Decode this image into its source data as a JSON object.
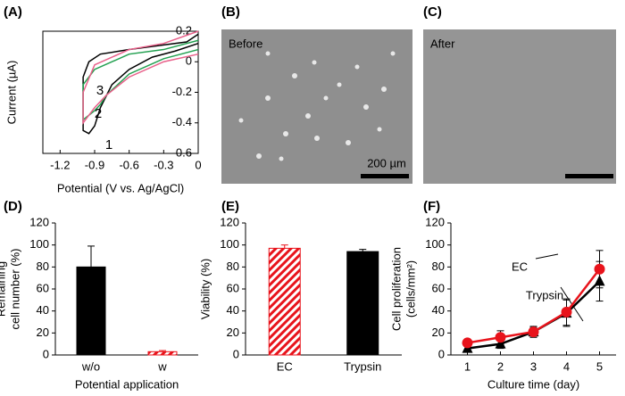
{
  "chart_data": [
    {
      "type": "line",
      "panel_label": "(A)",
      "x_label": "Potential (V vs. Ag/AgCl)",
      "y_label": "Current (µA)",
      "xlim": [
        -1.35,
        0
      ],
      "xticks": [
        -1.2,
        -0.9,
        -0.6,
        -0.3,
        0
      ],
      "ylim": [
        -0.6,
        0.2
      ],
      "yticks": [
        -0.6,
        -0.4,
        -0.2,
        0,
        0.2
      ],
      "frame": true,
      "series": [
        {
          "name": "1",
          "color": "#000000",
          "x": [
            0,
            -0.2,
            -0.4,
            -0.6,
            -0.75,
            -0.85,
            -0.9,
            -0.95,
            -1.0,
            -1.0,
            -0.95,
            -0.85,
            -0.6,
            -0.3,
            -0.1,
            0
          ],
          "values": [
            0.12,
            0.07,
            0.03,
            -0.05,
            -0.15,
            -0.3,
            -0.42,
            -0.47,
            -0.45,
            -0.1,
            0.0,
            0.05,
            0.08,
            0.11,
            0.13,
            0.18
          ]
        },
        {
          "name": "2",
          "color": "#22a050",
          "x": [
            0,
            -0.3,
            -0.6,
            -0.8,
            -0.85,
            -0.9,
            -1.0,
            -1.0,
            -0.9,
            -0.6,
            -0.3,
            0
          ],
          "values": [
            0.08,
            0.02,
            -0.08,
            -0.22,
            -0.28,
            -0.32,
            -0.38,
            -0.15,
            -0.05,
            0.05,
            0.08,
            0.14
          ]
        },
        {
          "name": "3",
          "color": "#e8608a",
          "x": [
            0,
            -0.3,
            -0.6,
            -0.8,
            -0.9,
            -1.0,
            -1.0,
            -0.9,
            -0.6,
            -0.3,
            0
          ],
          "values": [
            0.05,
            0.0,
            -0.1,
            -0.22,
            -0.3,
            -0.4,
            -0.2,
            -0.02,
            0.08,
            0.12,
            0.2
          ]
        }
      ]
    },
    {
      "type": "bar",
      "panel_label": "(D)",
      "x_label": "Potential application",
      "y_label": [
        "Remaining",
        "cell number (%)"
      ],
      "categories": [
        "w/o",
        "w"
      ],
      "values": [
        80,
        3
      ],
      "errors": [
        19,
        1
      ],
      "colors": [
        "#000000",
        "#e8131b"
      ],
      "hatched": [
        false,
        true
      ],
      "ylim": [
        0,
        120
      ],
      "yticks": [
        0,
        20,
        40,
        60,
        80,
        100,
        120
      ]
    },
    {
      "type": "bar",
      "panel_label": "(E)",
      "y_label": "Viability (%)",
      "categories": [
        "EC",
        "Trypsin"
      ],
      "values": [
        97,
        94
      ],
      "errors": [
        3,
        2
      ],
      "colors": [
        "#e8131b",
        "#000000"
      ],
      "hatched": [
        true,
        false
      ],
      "ylim": [
        0,
        120
      ],
      "yticks": [
        0,
        20,
        40,
        60,
        80,
        100,
        120
      ]
    },
    {
      "type": "line",
      "panel_label": "(F)",
      "x_label": "Culture time (day)",
      "y_label": [
        "Cell proliferation",
        "(cells/mm²)"
      ],
      "x": [
        1,
        2,
        3,
        4,
        5
      ],
      "xlim": [
        0.5,
        5.5
      ],
      "xticks": [
        1,
        2,
        3,
        4,
        5
      ],
      "ylim": [
        0,
        120
      ],
      "yticks": [
        0,
        20,
        40,
        60,
        80,
        100,
        120
      ],
      "series": [
        {
          "name": "Trypsin",
          "color": "#000000",
          "marker": "triangle",
          "values": [
            6,
            10,
            21,
            38,
            67
          ],
          "errors": [
            2,
            4,
            5,
            12,
            18
          ]
        },
        {
          "name": "EC",
          "color": "#e8131b",
          "marker": "circle",
          "values": [
            11,
            16,
            21,
            39,
            78
          ],
          "errors": [
            2,
            6,
            4,
            12,
            17
          ]
        }
      ]
    }
  ],
  "images": [
    {
      "panel_label": "(B)",
      "caption": "Before",
      "scale_bar": "200 µm"
    },
    {
      "panel_label": "(C)",
      "caption": "After"
    }
  ]
}
